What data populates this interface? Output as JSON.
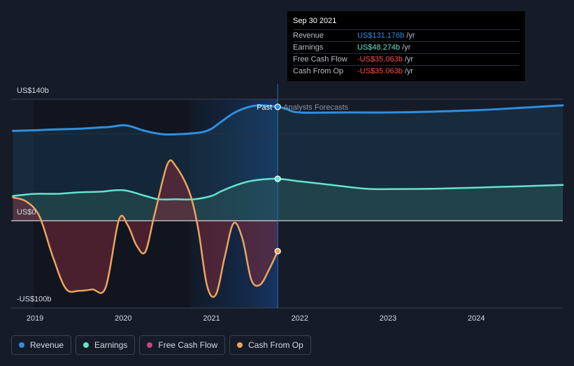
{
  "tooltip": {
    "date": "Sep 30 2021",
    "rows": [
      {
        "label": "Revenue",
        "value": "US$131.176b",
        "unit": "/yr",
        "color": "#2e8fe0"
      },
      {
        "label": "Earnings",
        "value": "US$48.274b",
        "unit": "/yr",
        "color": "#64e3d0"
      },
      {
        "label": "Free Cash Flow",
        "value": "-US$35.063b",
        "unit": "/yr",
        "color": "#ff4d4d"
      },
      {
        "label": "Cash From Op",
        "value": "-US$35.063b",
        "unit": "/yr",
        "color": "#ff4d4d"
      }
    ]
  },
  "legend": [
    {
      "label": "Revenue",
      "color": "#2e8fe0"
    },
    {
      "label": "Earnings",
      "color": "#64e3d0"
    },
    {
      "label": "Free Cash Flow",
      "color": "#c2477a"
    },
    {
      "label": "Cash From Op",
      "color": "#e9a55e"
    }
  ],
  "chart_data": {
    "type": "line",
    "y_tick_labels": [
      "US$140b",
      "US$0",
      "-US$100b"
    ],
    "ylim": [
      -100,
      140
    ],
    "xlim": [
      2018.73,
      2024.98
    ],
    "x_tick_labels": [
      "2019",
      "2020",
      "2021",
      "2022",
      "2023",
      "2024"
    ],
    "x_ticks": [
      2019,
      2020,
      2021,
      2022,
      2023,
      2024
    ],
    "divider_date": 2021.75,
    "past_label": "Past",
    "forecast_label": "Analysts Forecasts",
    "series": [
      {
        "name": "Revenue",
        "color": "#2e8fe0",
        "points": [
          [
            2018.75,
            103.5
          ],
          [
            2019.0,
            104.2
          ],
          [
            2019.25,
            105.2
          ],
          [
            2019.5,
            106.0
          ],
          [
            2019.75,
            107.5
          ],
          [
            2019.85,
            108.1
          ],
          [
            2020.0,
            110.0
          ],
          [
            2020.1,
            108.2
          ],
          [
            2020.25,
            103.3
          ],
          [
            2020.45,
            99.6
          ],
          [
            2020.6,
            99.6
          ],
          [
            2020.75,
            100.4
          ],
          [
            2020.9,
            102.1
          ],
          [
            2021.0,
            106.0
          ],
          [
            2021.1,
            113.3
          ],
          [
            2021.25,
            123.9
          ],
          [
            2021.4,
            130.4
          ],
          [
            2021.55,
            132.9
          ],
          [
            2021.75,
            131.2
          ],
          [
            2021.85,
            128.6
          ],
          [
            2022.0,
            124.7
          ],
          [
            2022.5,
            124.7
          ],
          [
            2023.0,
            124.7
          ],
          [
            2023.5,
            125.6
          ],
          [
            2024.0,
            127.3
          ],
          [
            2024.5,
            130.0
          ],
          [
            2024.98,
            132.9
          ]
        ],
        "forecast_from": 2021.75
      },
      {
        "name": "Earnings",
        "color": "#64e3d0",
        "points": [
          [
            2018.75,
            28.6
          ],
          [
            2019.0,
            31.0
          ],
          [
            2019.25,
            31.0
          ],
          [
            2019.5,
            32.7
          ],
          [
            2019.75,
            33.5
          ],
          [
            2020.0,
            35.2
          ],
          [
            2020.25,
            28.6
          ],
          [
            2020.4,
            24.7
          ],
          [
            2020.6,
            24.7
          ],
          [
            2020.8,
            24.7
          ],
          [
            2021.0,
            28.6
          ],
          [
            2021.1,
            33.5
          ],
          [
            2021.25,
            39.9
          ],
          [
            2021.4,
            44.7
          ],
          [
            2021.55,
            47.2
          ],
          [
            2021.75,
            48.3
          ],
          [
            2022.0,
            45.4
          ],
          [
            2022.4,
            40.7
          ],
          [
            2022.75,
            36.8
          ],
          [
            2023.0,
            36.4
          ],
          [
            2023.5,
            36.8
          ],
          [
            2024.0,
            38.1
          ],
          [
            2024.5,
            39.7
          ],
          [
            2024.98,
            41.2
          ]
        ],
        "forecast_from": 2021.75
      },
      {
        "name": "Cash From Op",
        "color": "#e9a55e",
        "points": [
          [
            2018.75,
            26.8
          ],
          [
            2018.9,
            22.2
          ],
          [
            2019.05,
            5.1
          ],
          [
            2019.2,
            -40.9
          ],
          [
            2019.35,
            -78.4
          ],
          [
            2019.5,
            -80.7
          ],
          [
            2019.65,
            -79.2
          ],
          [
            2019.8,
            -76.9
          ],
          [
            2019.95,
            0.9
          ],
          [
            2020.05,
            -5.1
          ],
          [
            2020.15,
            -28.6
          ],
          [
            2020.25,
            -35.8
          ],
          [
            2020.35,
            5.1
          ],
          [
            2020.5,
            65.0
          ],
          [
            2020.6,
            62.0
          ],
          [
            2020.75,
            32.7
          ],
          [
            2020.85,
            -10.0
          ],
          [
            2020.95,
            -75.4
          ],
          [
            2021.05,
            -85.0
          ],
          [
            2021.15,
            -41.4
          ],
          [
            2021.25,
            -2.9
          ],
          [
            2021.35,
            -20.5
          ],
          [
            2021.45,
            -67.9
          ],
          [
            2021.55,
            -73.7
          ],
          [
            2021.65,
            -56.7
          ],
          [
            2021.75,
            -35.1
          ]
        ],
        "forecast_from": null
      }
    ]
  }
}
